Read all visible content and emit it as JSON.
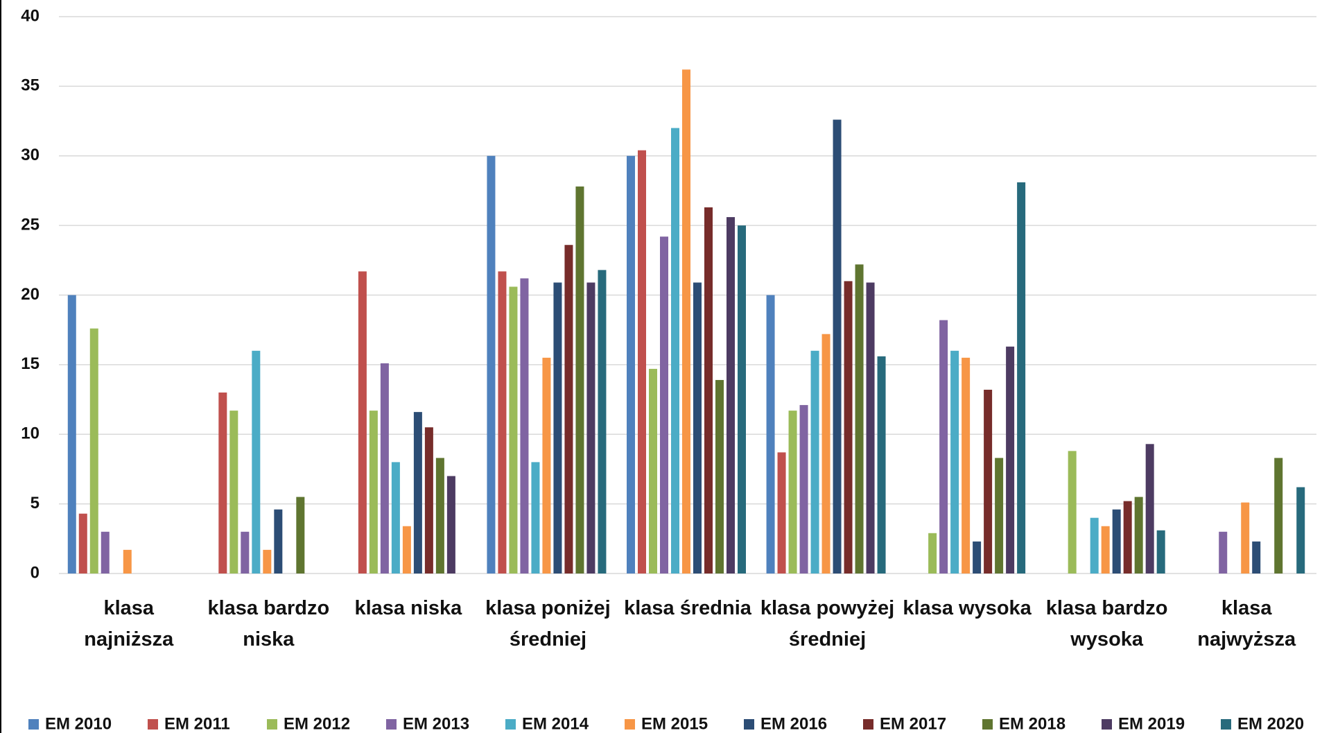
{
  "chart_data": {
    "type": "bar",
    "categories": [
      "klasa najniższa",
      "klasa bardzo niska",
      "klasa niska",
      "klasa poniżej średniej",
      "klasa średnia",
      "klasa powyżej średniej",
      "klasa wysoka",
      "klasa bardzo wysoka",
      "klasa najwyższa"
    ],
    "series": [
      {
        "name": "EM 2010",
        "color": "#4f81bd",
        "values": [
          20,
          0,
          0,
          30,
          30,
          20,
          0,
          0,
          0
        ]
      },
      {
        "name": "EM 2011",
        "color": "#c0504d",
        "values": [
          4.3,
          13,
          21.7,
          21.7,
          30.4,
          8.7,
          0,
          0,
          0
        ]
      },
      {
        "name": "EM 2012",
        "color": "#9bbb59",
        "values": [
          17.6,
          11.7,
          11.7,
          20.6,
          14.7,
          11.7,
          2.9,
          8.8,
          0
        ]
      },
      {
        "name": "EM 2013",
        "color": "#8064a2",
        "values": [
          3,
          3,
          15.1,
          21.2,
          24.2,
          12.1,
          18.2,
          0,
          3
        ]
      },
      {
        "name": "EM 2014",
        "color": "#4bacc6",
        "values": [
          0,
          16,
          8,
          8,
          32,
          16,
          16,
          4,
          0
        ]
      },
      {
        "name": "EM 2015",
        "color": "#f79646",
        "values": [
          1.7,
          1.7,
          3.4,
          15.5,
          36.2,
          17.2,
          15.5,
          3.4,
          5.1
        ]
      },
      {
        "name": "EM 2016",
        "color": "#2c4d75",
        "values": [
          0,
          4.6,
          11.6,
          20.9,
          20.9,
          32.6,
          2.3,
          4.6,
          2.3
        ]
      },
      {
        "name": "EM 2017",
        "color": "#772c2a",
        "values": [
          0,
          0,
          10.5,
          23.6,
          26.3,
          21,
          13.2,
          5.2,
          0
        ]
      },
      {
        "name": "EM 2018",
        "color": "#5f7530",
        "values": [
          0,
          5.5,
          8.3,
          27.8,
          13.9,
          22.2,
          8.3,
          5.5,
          8.3
        ]
      },
      {
        "name": "EM 2019",
        "color": "#4d3b62",
        "values": [
          0,
          0,
          7,
          20.9,
          25.6,
          20.9,
          16.3,
          9.3,
          0
        ]
      },
      {
        "name": "EM 2020",
        "color": "#276a7c",
        "values": [
          0,
          0,
          0,
          21.8,
          25,
          15.6,
          28.1,
          3.1,
          6.2
        ]
      }
    ],
    "ylim": [
      0,
      40
    ],
    "yticks": [
      0,
      5,
      10,
      15,
      20,
      25,
      30,
      35,
      40
    ],
    "grid": true,
    "legend": "bottom"
  }
}
